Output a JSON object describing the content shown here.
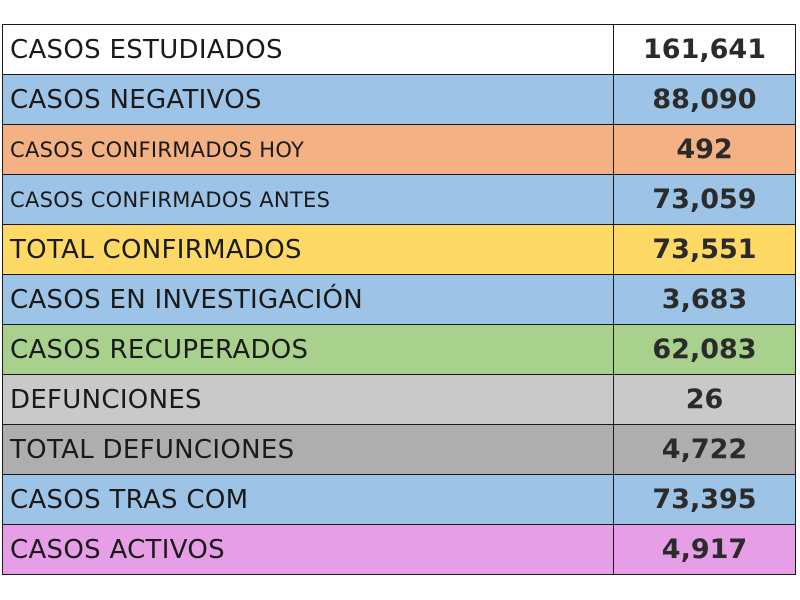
{
  "colors": {
    "white": "#ffffff",
    "blue": "#9dc3e6",
    "orange": "#f4b183",
    "yellow": "#ffd966",
    "green": "#a9d18e",
    "light_gray": "#c9c9c9",
    "dark_gray": "#aeaeae",
    "pink": "#e69ee6"
  },
  "rows": [
    {
      "label": "CASOS ESTUDIADOS",
      "value": "161,641",
      "color": "#ffffff",
      "small": false
    },
    {
      "label": "CASOS NEGATIVOS",
      "value": "88,090",
      "color": "#9dc3e6",
      "small": false
    },
    {
      "label": "CASOS CONFIRMADOS HOY",
      "value": "492",
      "color": "#f4b183",
      "small": true
    },
    {
      "label": "CASOS CONFIRMADOS ANTES",
      "value": "73,059",
      "color": "#9dc3e6",
      "small": true
    },
    {
      "label": "TOTAL CONFIRMADOS",
      "value": "73,551",
      "color": "#ffd966",
      "small": false
    },
    {
      "label": "CASOS EN INVESTIGACIÓN",
      "value": "3,683",
      "color": "#9dc3e6",
      "small": false
    },
    {
      "label": "CASOS RECUPERADOS",
      "value": "62,083",
      "color": "#a9d18e",
      "small": false
    },
    {
      "label": "DEFUNCIONES",
      "value": "26",
      "color": "#c9c9c9",
      "small": false
    },
    {
      "label": "TOTAL DEFUNCIONES",
      "value": "4,722",
      "color": "#aeaeae",
      "small": false
    },
    {
      "label": "CASOS TRAS COM",
      "value": "73,395",
      "color": "#9dc3e6",
      "small": false
    },
    {
      "label": "CASOS ACTIVOS",
      "value": "4,917",
      "color": "#e69ee6",
      "small": false
    }
  ]
}
